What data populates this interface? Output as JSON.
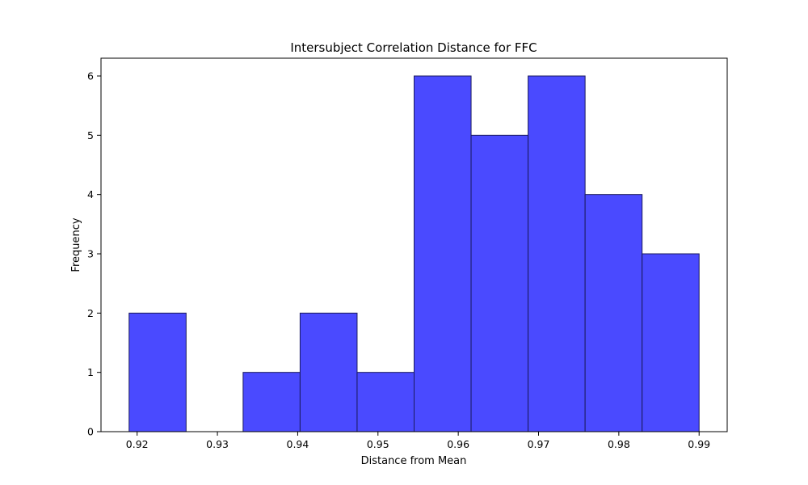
{
  "chart_data": {
    "type": "bar",
    "title": "Intersubject Correlation Distance for FFC",
    "xlabel": "Distance from Mean",
    "ylabel": "Frequency",
    "bins": [
      {
        "x0": 0.919,
        "x1": 0.9261,
        "count": 2
      },
      {
        "x0": 0.9261,
        "x1": 0.9332,
        "count": 0
      },
      {
        "x0": 0.9332,
        "x1": 0.9403,
        "count": 1
      },
      {
        "x0": 0.9403,
        "x1": 0.9474,
        "count": 2
      },
      {
        "x0": 0.9474,
        "x1": 0.9545,
        "count": 1
      },
      {
        "x0": 0.9545,
        "x1": 0.9616,
        "count": 6
      },
      {
        "x0": 0.9616,
        "x1": 0.9687,
        "count": 5
      },
      {
        "x0": 0.9687,
        "x1": 0.9758,
        "count": 6
      },
      {
        "x0": 0.9758,
        "x1": 0.9829,
        "count": 4
      },
      {
        "x0": 0.9829,
        "x1": 0.99,
        "count": 3
      }
    ],
    "xlim": [
      0.9155,
      0.9935
    ],
    "ylim": [
      0,
      6.3
    ],
    "xticks": [
      0.92,
      0.93,
      0.94,
      0.95,
      0.96,
      0.97,
      0.98,
      0.99
    ],
    "xtick_labels": [
      "0.92",
      "0.93",
      "0.94",
      "0.95",
      "0.96",
      "0.97",
      "0.98",
      "0.99"
    ],
    "yticks": [
      0,
      1,
      2,
      3,
      4,
      5,
      6
    ],
    "ytick_labels": [
      "0",
      "1",
      "2",
      "3",
      "4",
      "5",
      "6"
    ],
    "bar_color": "#4a4aff",
    "edge_color": "#1a1a5e",
    "grid": false
  }
}
